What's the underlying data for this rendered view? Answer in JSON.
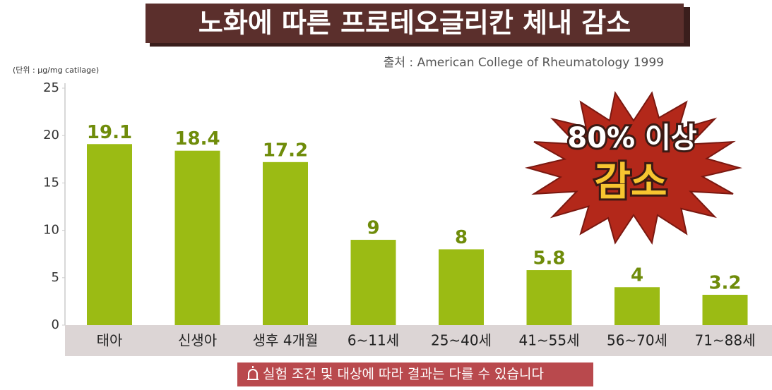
{
  "chart_data": {
    "type": "bar",
    "title": "노화에 따른 프로테오글리칸 체내 감소",
    "source": "출처 : American College of Rheumatology 1999",
    "unit_label": "(단위 : μg/mg catilage)",
    "categories": [
      "태아",
      "신생아",
      "생후 4개월",
      "6~11세",
      "25~40세",
      "41~55세",
      "56~70세",
      "71~88세"
    ],
    "values": [
      19.1,
      18.4,
      17.2,
      9,
      8,
      5.8,
      4,
      3.2
    ],
    "color": "#9bbb14",
    "ylim": [
      0,
      25
    ],
    "yticks": [
      0,
      5,
      10,
      15,
      20,
      25
    ],
    "annotation": {
      "line1": "80% 이상",
      "line2": "감소"
    },
    "footnote": "실험 조건 및 대상에 따라 결과는 다를 수 있습니다"
  }
}
